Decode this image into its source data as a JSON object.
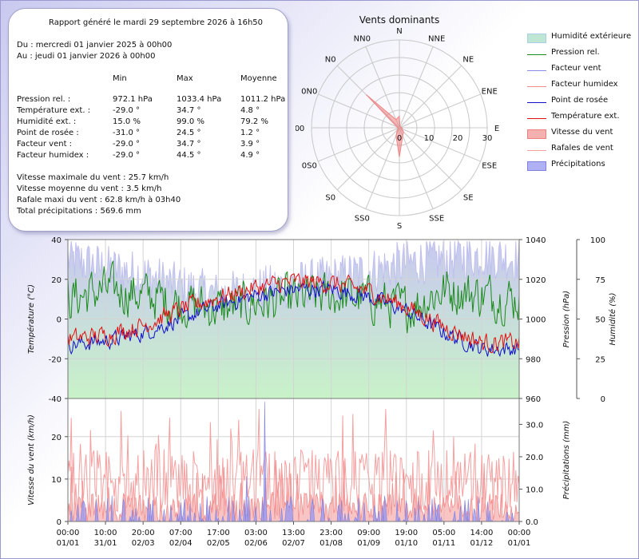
{
  "summary": {
    "generated": "Rapport généré le mardi 29 septembre 2026 à 16h50",
    "from": "Du : mercredi 01 janvier 2025 à 00h00",
    "to": "Au : jeudi 01 janvier 2026 à 00h00",
    "headers": [
      "Min",
      "Max",
      "Moyenne"
    ],
    "rows": [
      {
        "label": "Pression rel. :",
        "min": "972.1 hPa",
        "max": "1033.4 hPa",
        "avg": "1011.2 hPa"
      },
      {
        "label": "Température ext. :",
        "min": "-29.0 °",
        "max": "34.7 °",
        "avg": "4.8 °"
      },
      {
        "label": "Humidité ext. :",
        "min": "15.0 %",
        "max": "99.0 %",
        "avg": "79.2 %"
      },
      {
        "label": "Point de rosée :",
        "min": "-31.0 °",
        "max": "24.5 °",
        "avg": "1.2 °"
      },
      {
        "label": "Facteur vent :",
        "min": "-29.0 °",
        "max": "34.7 °",
        "avg": "3.9 °"
      },
      {
        "label": "Facteur humidex :",
        "min": "-29.0 °",
        "max": "44.5 °",
        "avg": "4.9 °"
      }
    ],
    "wind_max": "Vitesse maximale du vent : 25.7 km/h",
    "wind_avg": "Vitesse moyenne du vent : 3.5 km/h",
    "gust_max": "Rafale maxi du vent : 62.8 km/h à 03h40",
    "precip_total": "Total précipitations : 569.6 mm"
  },
  "legend": [
    {
      "label": "Humidité extérieure",
      "kind": "area",
      "color": "#bfe6d2",
      "border": "#a6cfe0"
    },
    {
      "label": "Pression rel.",
      "kind": "line",
      "color": "#1a8a1a"
    },
    {
      "label": "Facteur vent",
      "kind": "line",
      "color": "#8a8ae6"
    },
    {
      "label": "Facteur humidex",
      "kind": "line",
      "color": "#f08c8c"
    },
    {
      "label": "Point de rosée",
      "kind": "line",
      "color": "#1010c8"
    },
    {
      "label": "Température ext.",
      "kind": "line",
      "color": "#e01010"
    },
    {
      "label": "Vitesse du vent",
      "kind": "area",
      "color": "#f5b0b0",
      "border": "#f08080"
    },
    {
      "label": "Rafales de vent",
      "kind": "line",
      "color": "#f5a0a0"
    },
    {
      "label": "Précipitations",
      "kind": "area",
      "color": "#b0b0f5",
      "border": "#8080e0"
    }
  ],
  "chart_data": [
    {
      "type": "radar",
      "title": "Vents dominants",
      "directions": [
        "N",
        "NNE",
        "NE",
        "ENE",
        "E",
        "ESE",
        "SE",
        "SSE",
        "S",
        "SS0",
        "S0",
        "0S0",
        "0",
        "0N0",
        "N0",
        "NN0"
      ],
      "rings": [
        0,
        10,
        20,
        30
      ],
      "rmax": 30,
      "values": [
        4,
        0.5,
        0.5,
        0.5,
        1,
        1,
        2,
        3,
        10,
        3,
        1,
        0.5,
        0.5,
        1,
        16,
        3
      ],
      "color": "#f08080"
    },
    {
      "type": "line",
      "x_ticks": [
        "00:00\n01/01",
        "10:00\n31/01",
        "20:00\n02/03",
        "07:00\n02/04",
        "17:00\n02/05",
        "03:00\n02/06",
        "13:00\n02/07",
        "23:00\n01/08",
        "09:00\n01/09",
        "19:00\n01/10",
        "05:00\n01/11",
        "14:00\n01/12",
        "00:00\n01/01"
      ],
      "y_left": {
        "label": "Température (°C)",
        "range": [
          -40,
          40
        ],
        "ticks": [
          -40,
          -20,
          0,
          20,
          40
        ]
      },
      "y_right1": {
        "label": "Pression (hPa)",
        "range": [
          960,
          1040
        ],
        "ticks": [
          960,
          980,
          1000,
          1020,
          1040
        ]
      },
      "y_right2": {
        "label": "Humidité (%)",
        "range": [
          0,
          100
        ],
        "ticks": [
          0,
          25,
          50,
          75,
          100
        ]
      },
      "series_summary": [
        {
          "name": "Température ext.",
          "approx_monthly": [
            -10,
            -8,
            -3,
            5,
            11,
            16,
            19,
            18,
            14,
            6,
            -4,
            -12,
            -12
          ],
          "color": "#e01010"
        },
        {
          "name": "Point de rosée",
          "approx_monthly": [
            -13,
            -11,
            -7,
            0,
            7,
            12,
            15,
            15,
            11,
            4,
            -7,
            -15,
            -15
          ],
          "color": "#1010c8"
        },
        {
          "name": "Pression rel.",
          "approx_monthly": [
            1010,
            1015,
            1012,
            1008,
            1005,
            1008,
            1010,
            1012,
            1010,
            1005,
            1015,
            1012,
            1010
          ],
          "color": "#1a8a1a"
        },
        {
          "name": "Humidité extérieure",
          "approx_monthly": [
            88,
            82,
            78,
            70,
            65,
            68,
            72,
            75,
            80,
            85,
            88,
            90,
            88
          ],
          "color": "#bfe6d2"
        }
      ]
    },
    {
      "type": "area",
      "y_left": {
        "label": "Vitesse du vent (km/h)",
        "range": [
          0,
          29
        ],
        "ticks": [
          0,
          10,
          20
        ]
      },
      "y_right": {
        "label": "Précipitations (mm)",
        "range": [
          0,
          38
        ],
        "ticks": [
          0.0,
          10.0,
          20.0,
          30.0
        ]
      },
      "series_summary": [
        {
          "name": "Vitesse du vent",
          "typical": 3.5,
          "max": 25.7,
          "color": "#f5b0b0"
        },
        {
          "name": "Rafales de vent",
          "typical": 8,
          "color": "#f5a0a0"
        },
        {
          "name": "Précipitations",
          "peak": 37,
          "color": "#b0b0f5"
        }
      ]
    }
  ]
}
